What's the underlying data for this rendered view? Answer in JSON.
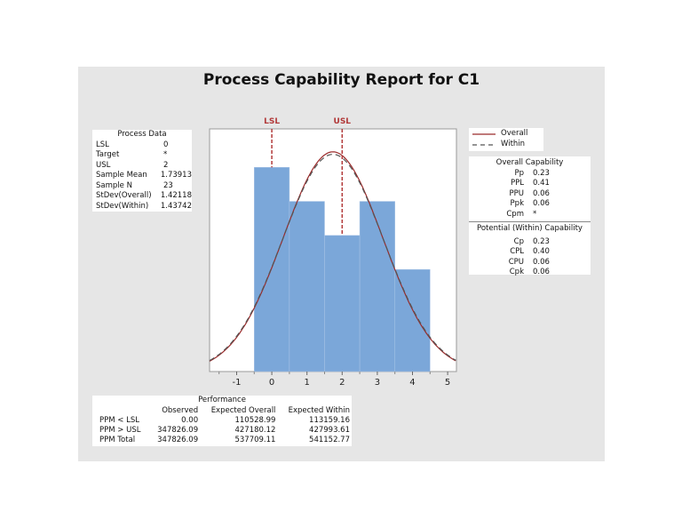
{
  "title": "Process Capability Report for C1",
  "process_data": {
    "heading": "Process Data",
    "rows": [
      {
        "label": "LSL",
        "value": "0"
      },
      {
        "label": "Target",
        "value": "*"
      },
      {
        "label": "USL",
        "value": "2"
      },
      {
        "label": "Sample Mean",
        "value": "1.73913"
      },
      {
        "label": "Sample N",
        "value": "23"
      },
      {
        "label": "StDev(Overall)",
        "value": "1.42118"
      },
      {
        "label": "StDev(Within)",
        "value": "1.43742"
      }
    ]
  },
  "legend": {
    "overall": "Overall",
    "within": "Within"
  },
  "overall_capability": {
    "heading": "Overall Capability",
    "rows": [
      {
        "label": "Pp",
        "value": "0.23"
      },
      {
        "label": "PPL",
        "value": "0.41"
      },
      {
        "label": "PPU",
        "value": "0.06"
      },
      {
        "label": "Ppk",
        "value": "0.06"
      },
      {
        "label": "Cpm",
        "value": "*"
      }
    ]
  },
  "within_capability": {
    "heading": "Potential (Within) Capability",
    "rows": [
      {
        "label": "Cp",
        "value": "0.23"
      },
      {
        "label": "CPL",
        "value": "0.40"
      },
      {
        "label": "CPU",
        "value": "0.06"
      },
      {
        "label": "Cpk",
        "value": "0.06"
      }
    ]
  },
  "performance": {
    "heading": "Performance",
    "columns": [
      "",
      "Observed",
      "Expected Overall",
      "Expected Within"
    ],
    "rows": [
      [
        "PPM < LSL",
        "0.00",
        "110528.99",
        "113159.16"
      ],
      [
        "PPM > USL",
        "347826.09",
        "427180.12",
        "427993.61"
      ],
      [
        "PPM Total",
        "347826.09",
        "537709.11",
        "541152.77"
      ]
    ]
  },
  "chart_data": {
    "type": "bar",
    "bin_edges": [
      -0.5,
      0.5,
      1.5,
      2.5,
      3.5,
      4.5
    ],
    "counts": [
      6,
      5,
      4,
      5,
      3
    ],
    "xlim": [
      -1.77,
      5.25
    ],
    "xticks": [
      "-1",
      "0",
      "1",
      "2",
      "3",
      "4",
      "5"
    ],
    "spec_lines": [
      {
        "label": "LSL",
        "x": 0
      },
      {
        "label": "USL",
        "x": 2
      }
    ],
    "curves": [
      {
        "name": "Overall",
        "mean": 1.73913,
        "sd": 1.42118,
        "style": "solid"
      },
      {
        "name": "Within",
        "mean": 1.73913,
        "sd": 1.43742,
        "style": "dashed"
      }
    ],
    "n": 23,
    "colors": {
      "bars": "#7ba7d9",
      "curve": "#9b2a2a",
      "spec": "#b23a3a"
    }
  }
}
